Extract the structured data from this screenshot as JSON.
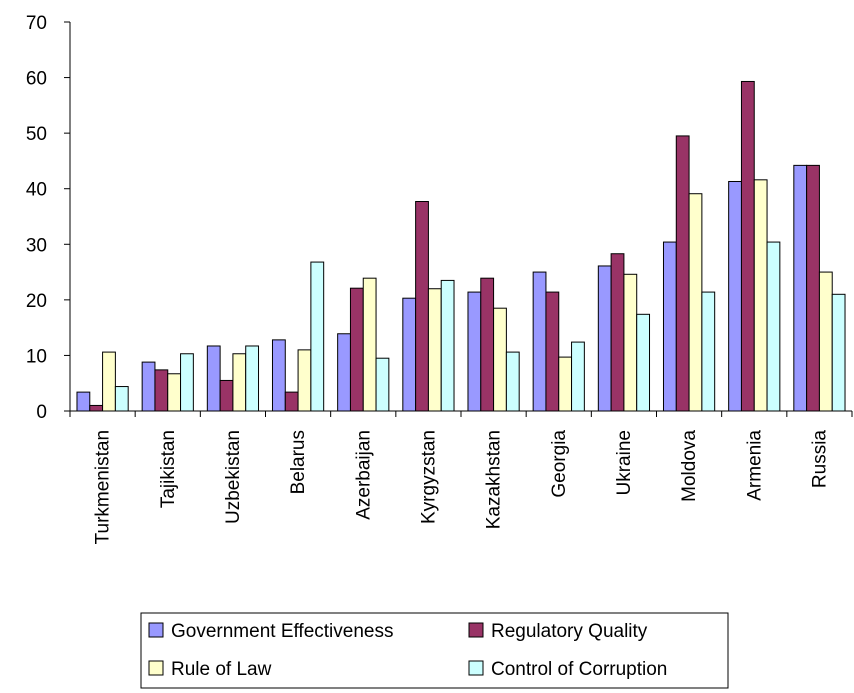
{
  "chart_data": {
    "type": "bar",
    "categories": [
      "Turkmenistan",
      "Tajikistan",
      "Uzbekistan",
      "Belarus",
      "Azerbaijan",
      "Kyrgyzstan",
      "Kazakhstan",
      "Georgia",
      "Ukraine",
      "Moldova",
      "Armenia",
      "Russia"
    ],
    "series": [
      {
        "name": "Government Effectiveness",
        "color": "#9999ff",
        "values": [
          3.4,
          8.8,
          11.7,
          12.8,
          13.9,
          20.3,
          21.4,
          25.0,
          26.1,
          30.4,
          41.3,
          44.2
        ]
      },
      {
        "name": "Regulatory Quality",
        "color": "#993366",
        "values": [
          1.0,
          7.4,
          5.5,
          3.4,
          22.1,
          37.7,
          23.9,
          21.4,
          28.3,
          49.5,
          59.3,
          44.2
        ]
      },
      {
        "name": "Rule of Law",
        "color": "#ffffcc",
        "values": [
          10.6,
          6.7,
          10.3,
          11.0,
          23.9,
          22.0,
          18.5,
          9.7,
          24.6,
          39.1,
          41.6,
          25.0
        ]
      },
      {
        "name": "Control of Corruption",
        "color": "#ccffff",
        "values": [
          4.4,
          10.3,
          11.7,
          26.8,
          9.5,
          23.5,
          10.6,
          12.4,
          17.4,
          21.4,
          30.4,
          21.0
        ]
      }
    ],
    "yticks": [
      "0",
      "10",
      "20",
      "30",
      "40",
      "50",
      "60",
      "70"
    ],
    "ylim": [
      0,
      70
    ],
    "grid": false,
    "legend_position": "bottom"
  }
}
